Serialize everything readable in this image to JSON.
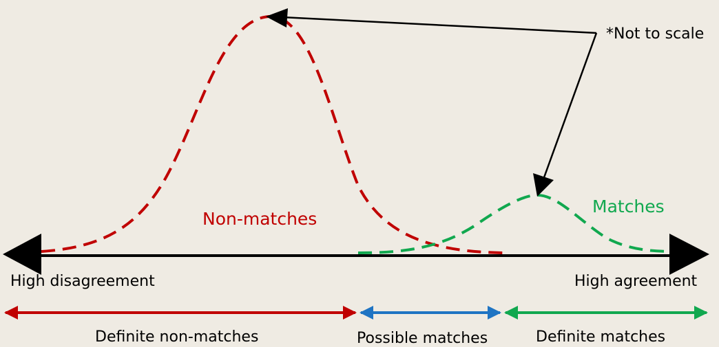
{
  "note": "*Not to scale",
  "axis": {
    "left_label": "High disagreement",
    "right_label": "High agreement"
  },
  "curves": {
    "non_matches": {
      "label": "Non-matches",
      "color": "#c00000"
    },
    "matches": {
      "label": "Matches",
      "color": "#11a84f"
    }
  },
  "ranges": [
    {
      "label": "Definite non-matches",
      "color": "#c00000"
    },
    {
      "label": "Possible matches",
      "color": "#1f74c3"
    },
    {
      "label": "Definite matches",
      "color": "#11a84f"
    }
  ]
}
